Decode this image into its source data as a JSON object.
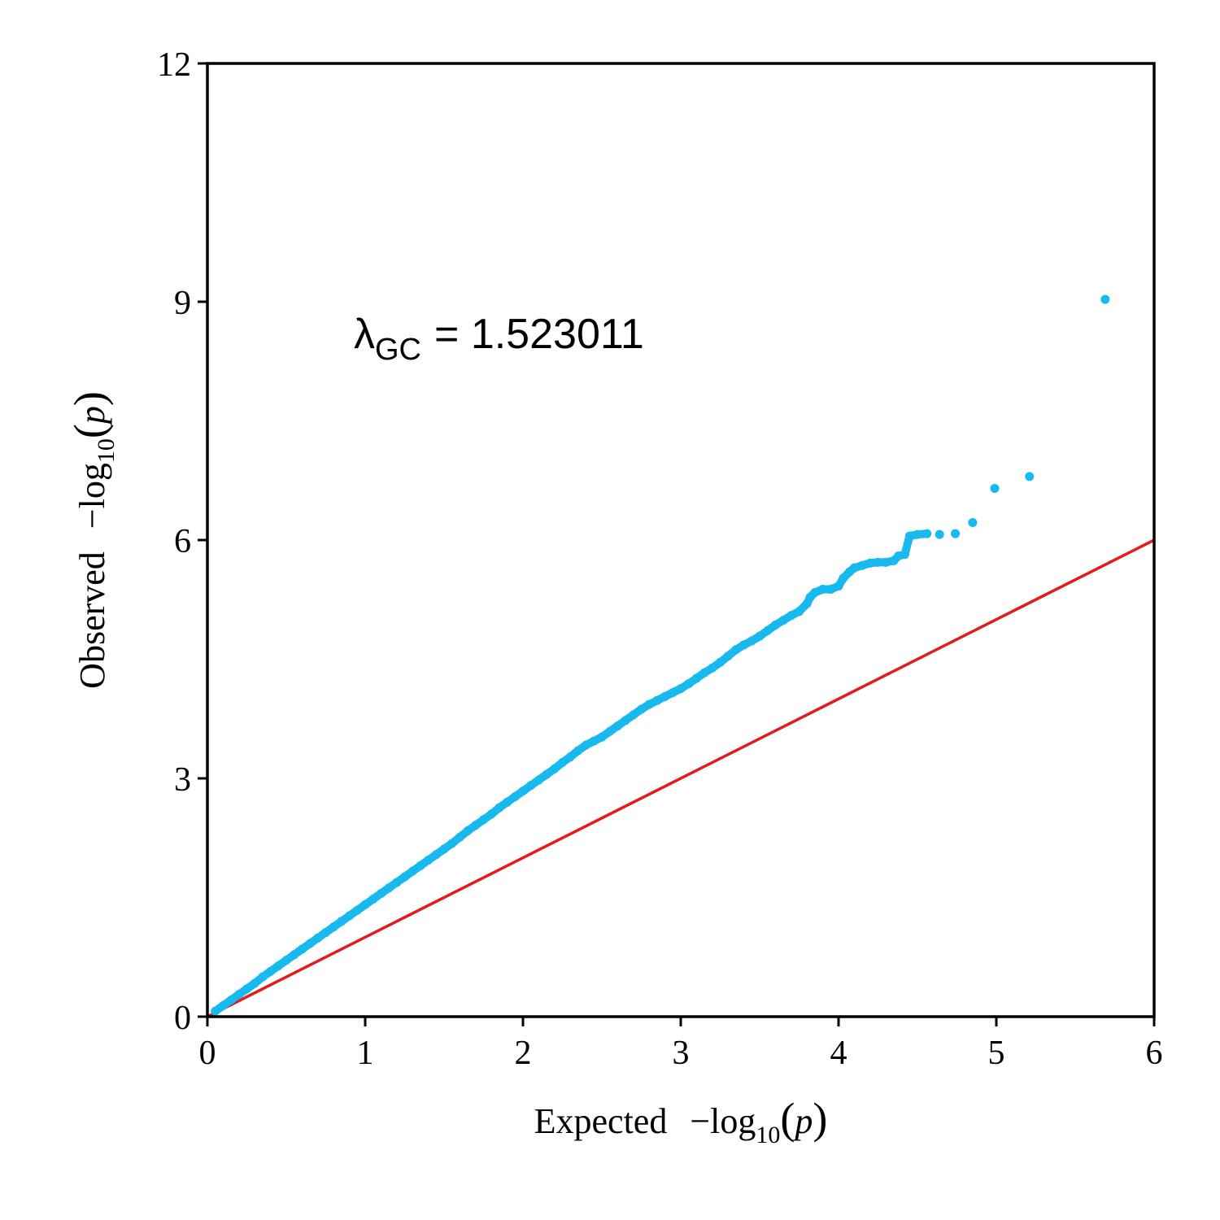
{
  "chart_data": {
    "type": "scatter",
    "xlabel": {
      "main": "Expected",
      "func": "−log",
      "sub": "10",
      "arg": "p"
    },
    "ylabel": {
      "main": "Observed",
      "func": "−log",
      "sub": "10",
      "arg": "p"
    },
    "xlim": [
      0,
      6
    ],
    "ylim": [
      0,
      12
    ],
    "xticks": [
      "0",
      "1",
      "2",
      "3",
      "4",
      "5",
      "6"
    ],
    "yticks": [
      "0",
      "3",
      "6",
      "9",
      "12"
    ],
    "grid": false,
    "annotation": {
      "symbol": "λ",
      "sub": "GC",
      "text": "= 1.523011"
    },
    "reference_line": {
      "from": [
        0,
        0
      ],
      "to": [
        6,
        6
      ],
      "color": "#e41a1c"
    },
    "series": [
      {
        "color": "#17b9ee",
        "x": [
          0.05,
          0.1,
          0.15,
          0.2,
          0.25,
          0.3,
          0.35,
          0.4,
          0.45,
          0.5,
          0.55,
          0.6,
          0.65,
          0.7,
          0.75,
          0.8,
          0.85,
          0.9,
          0.95,
          1.0,
          1.05,
          1.1,
          1.15,
          1.2,
          1.25,
          1.3,
          1.35,
          1.4,
          1.45,
          1.5,
          1.55,
          1.6,
          1.65,
          1.7,
          1.75,
          1.8,
          1.85,
          1.9,
          1.95,
          2.0,
          2.05,
          2.1,
          2.15,
          2.2,
          2.25,
          2.3,
          2.35,
          2.4,
          2.45,
          2.5,
          2.55,
          2.6,
          2.65,
          2.7,
          2.75,
          2.8,
          2.85,
          2.9,
          2.95,
          3.0,
          3.05,
          3.1,
          3.15,
          3.2,
          3.25,
          3.3,
          3.35,
          3.4,
          3.45,
          3.5,
          3.55,
          3.6,
          3.65,
          3.7,
          3.75,
          3.8,
          3.82,
          3.85,
          3.9,
          3.95,
          4.0,
          4.03,
          4.07,
          4.1,
          4.15,
          4.2,
          4.25,
          4.3,
          4.35,
          4.38,
          4.42,
          4.45,
          4.5,
          4.56,
          4.64,
          4.74,
          4.85,
          4.99,
          5.21,
          5.69
        ],
        "y": [
          0.07,
          0.14,
          0.21,
          0.28,
          0.35,
          0.42,
          0.5,
          0.57,
          0.64,
          0.71,
          0.78,
          0.85,
          0.92,
          0.99,
          1.06,
          1.13,
          1.2,
          1.27,
          1.34,
          1.41,
          1.48,
          1.55,
          1.62,
          1.69,
          1.76,
          1.83,
          1.9,
          1.97,
          2.04,
          2.11,
          2.18,
          2.26,
          2.34,
          2.41,
          2.48,
          2.55,
          2.63,
          2.7,
          2.77,
          2.84,
          2.91,
          2.98,
          3.05,
          3.12,
          3.2,
          3.27,
          3.35,
          3.42,
          3.47,
          3.52,
          3.59,
          3.66,
          3.73,
          3.8,
          3.87,
          3.93,
          3.98,
          4.03,
          4.08,
          4.13,
          4.19,
          4.26,
          4.33,
          4.39,
          4.46,
          4.54,
          4.62,
          4.68,
          4.73,
          4.79,
          4.86,
          4.93,
          4.99,
          5.05,
          5.1,
          5.2,
          5.28,
          5.34,
          5.38,
          5.38,
          5.42,
          5.52,
          5.6,
          5.65,
          5.68,
          5.71,
          5.72,
          5.72,
          5.74,
          5.8,
          5.82,
          6.05,
          6.07,
          6.08,
          6.07,
          6.08,
          6.22,
          6.65,
          6.8,
          9.03
        ]
      }
    ]
  }
}
